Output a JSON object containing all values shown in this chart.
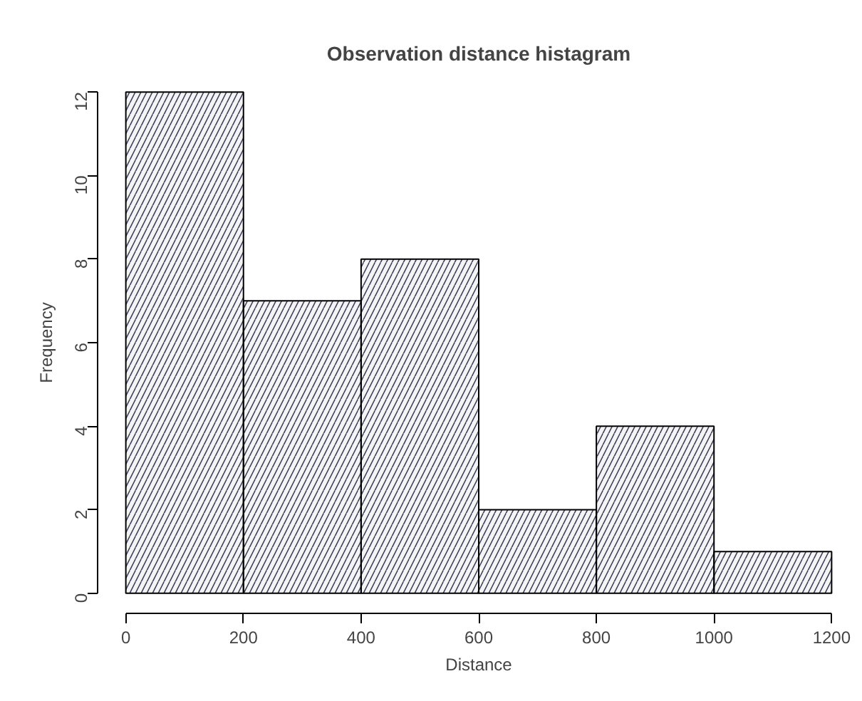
{
  "chart_data": {
    "type": "histogram",
    "title": "Observation distance histagram",
    "xlabel": "Distance",
    "ylabel": "Frequency",
    "bins": [
      0,
      200,
      400,
      600,
      800,
      1000,
      1200
    ],
    "values": [
      12,
      7,
      8,
      2,
      4,
      1
    ],
    "color": "#3c3c5a",
    "xlim": [
      0,
      1200
    ],
    "ylim": [
      0,
      12
    ],
    "xticks": [
      0,
      200,
      400,
      600,
      800,
      1000,
      1200
    ],
    "yticks": [
      0,
      2,
      4,
      6,
      8,
      10,
      12
    ],
    "grid": false
  }
}
